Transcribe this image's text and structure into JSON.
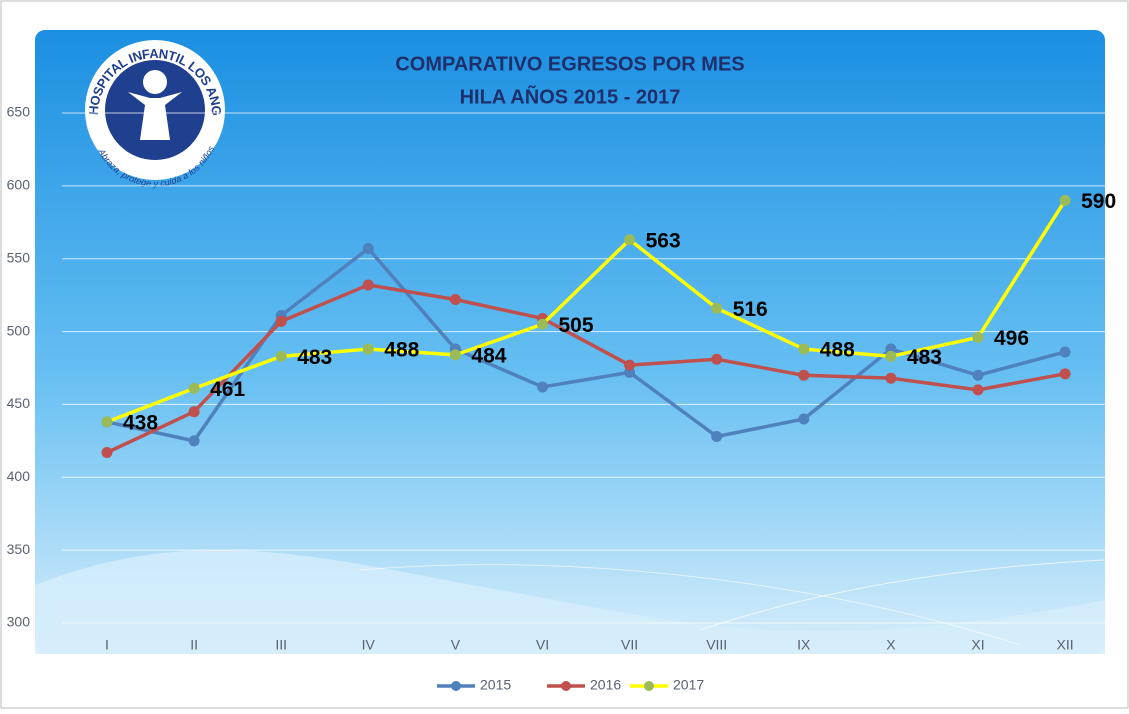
{
  "chart_data": {
    "type": "line",
    "title": "COMPARATIVO EGRESOS POR MES",
    "subtitle": "HILA AÑOS 2015 - 2017",
    "logo_text": "HOSPITAL INFANTIL LOS ANGELES",
    "logo_motto": "Abraza, protege y cuida a los niños",
    "categories": [
      "I",
      "II",
      "III",
      "IV",
      "V",
      "VI",
      "VII",
      "VIII",
      "IX",
      "X",
      "XI",
      "XII"
    ],
    "series": [
      {
        "name": "2015",
        "color": "#4f81bd",
        "marker_color": "#4f81bd",
        "data_labels": false,
        "values": [
          438,
          425,
          511,
          557,
          488,
          462,
          472,
          428,
          440,
          488,
          470,
          486
        ]
      },
      {
        "name": "2016",
        "color": "#c0504d",
        "marker_color": "#c0504d",
        "data_labels": false,
        "values": [
          417,
          445,
          507,
          532,
          522,
          509,
          477,
          481,
          470,
          468,
          460,
          471
        ]
      },
      {
        "name": "2017",
        "color": "#ffff00",
        "marker_color": "#9bbb59",
        "data_labels": true,
        "values": [
          438,
          461,
          483,
          488,
          484,
          505,
          563,
          516,
          488,
          483,
          496,
          590
        ]
      }
    ],
    "ylim": [
      300,
      650
    ],
    "yticks": [
      300,
      350,
      400,
      450,
      500,
      550,
      600,
      650
    ],
    "grid": true,
    "legend": "bottom"
  }
}
